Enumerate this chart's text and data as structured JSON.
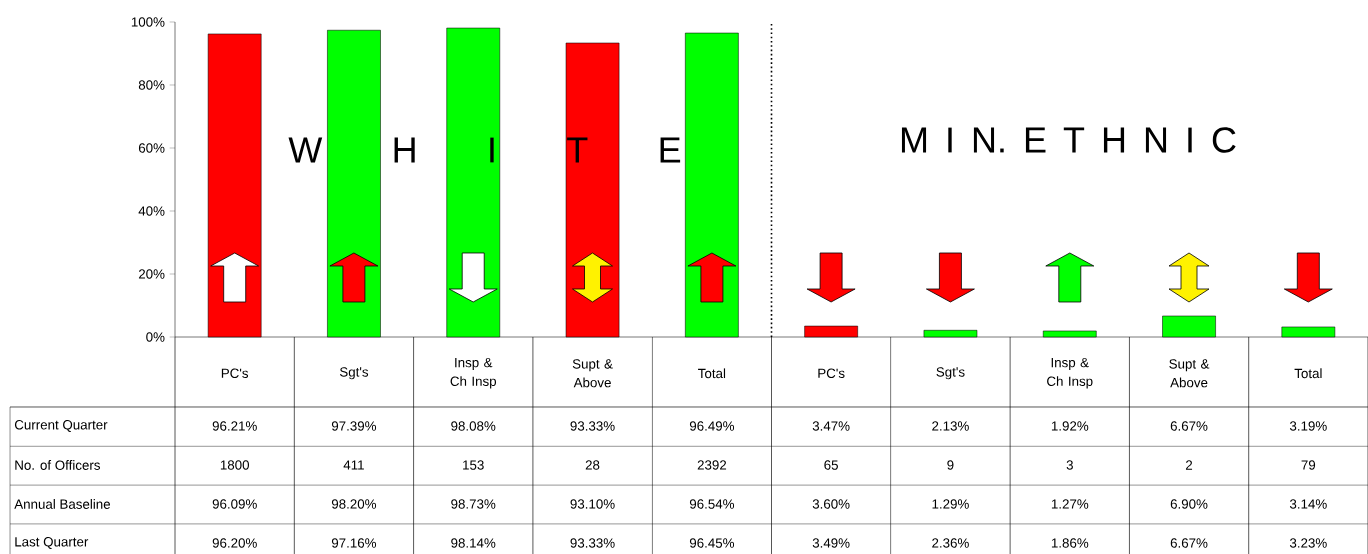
{
  "chart_data": {
    "type": "bar",
    "categories": [
      "PC's",
      "Sgt's",
      "Insp & Ch Insp",
      "Supt & Above",
      "Total",
      "PC's",
      "Sgt's",
      "Insp & Ch Insp",
      "Supt & Above",
      "Total"
    ],
    "series": [
      {
        "name": "Current Quarter",
        "values": [
          96.21,
          97.39,
          98.08,
          93.33,
          96.49,
          3.47,
          2.13,
          1.92,
          6.67,
          3.19
        ],
        "colors": [
          "#ff0000",
          "#00ff00",
          "#00ff00",
          "#ff0000",
          "#00ff00",
          "#ff0000",
          "#00ff00",
          "#00ff00",
          "#00ff00",
          "#00ff00"
        ],
        "value_labels": [
          "96.21%",
          "97.39%",
          "98.08%",
          "93.33%",
          "96.49%",
          "3.47%",
          "2.13%",
          "1.92%",
          "6.67%",
          "3.19%"
        ]
      }
    ],
    "ylim": [
      0,
      100
    ],
    "yticks": [
      {
        "value": 0,
        "label": "0%"
      },
      {
        "value": 20,
        "label": "20%"
      },
      {
        "value": 40,
        "label": "40%"
      },
      {
        "value": 60,
        "label": "60%"
      },
      {
        "value": 80,
        "label": "80%"
      },
      {
        "value": 100,
        "label": "100%"
      }
    ],
    "annotations": [
      "W H I T E",
      "M I N.  E T H N I C",
      "No. of Officers",
      "1800",
      "411",
      "153",
      "28",
      "2392",
      "65",
      "9",
      "3",
      "2",
      "79",
      "Annual Baseline",
      "96.09%",
      "98.20%",
      "98.73%",
      "93.10%",
      "96.54%",
      "3.60%",
      "1.29%",
      "1.27%",
      "6.90%",
      "3.14%",
      "Last Quarter",
      "96.20%",
      "97.16%",
      "98.14%",
      "93.33%",
      "96.45%",
      "3.49%",
      "2.36%",
      "1.86%",
      "6.67%",
      "3.23%"
    ]
  }
}
